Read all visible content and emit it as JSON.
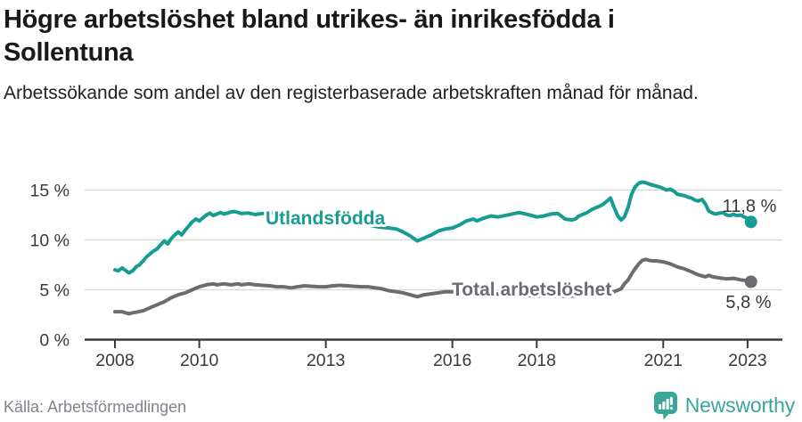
{
  "header": {
    "title_line1": "Högre arbetslöshet bland utrikes- än inrikesfödda i",
    "title_line2": "Sollentuna",
    "subtitle": "Arbetssökande som andel av den registerbaserade arbetskraften månad för månad."
  },
  "footer": {
    "source": "Källa: Arbetsförmedlingen",
    "brand": "Newsworthy",
    "brand_color": "#3aa69a"
  },
  "chart_data": {
    "type": "line",
    "title": "Högre arbetslöshet bland utrikes- än inrikesfödda i Sollentuna",
    "subtitle": "Arbetssökande som andel av den registerbaserade arbetskraften månad för månad.",
    "grid": true,
    "legend_position": "inline-labels",
    "x_axis": {
      "ticks": [
        {
          "year": 2008,
          "label": "2008"
        },
        {
          "year": 2010,
          "label": "2010"
        },
        {
          "year": 2013,
          "label": "2013"
        },
        {
          "year": 2016,
          "label": "2016"
        },
        {
          "year": 2018,
          "label": "2018"
        },
        {
          "year": 2021,
          "label": "2021"
        },
        {
          "year": 2023,
          "label": "2023"
        }
      ],
      "range": [
        2008,
        2023.2
      ]
    },
    "y_axis": {
      "ticks": [
        {
          "value": 15,
          "label": "15 %"
        },
        {
          "value": 10,
          "label": "10 %"
        },
        {
          "value": 5,
          "label": "5 %"
        },
        {
          "value": 0,
          "label": "0 %"
        }
      ],
      "range": [
        0,
        16.5
      ]
    },
    "series": [
      {
        "name": "Utlandsfödda",
        "color": "#169c92",
        "end_label": "11,8 %",
        "end_value": 11.8,
        "points": [
          [
            2008.0,
            7.0
          ],
          [
            2008.08,
            6.9
          ],
          [
            2008.17,
            7.2
          ],
          [
            2008.25,
            6.95
          ],
          [
            2008.33,
            6.7
          ],
          [
            2008.42,
            6.9
          ],
          [
            2008.5,
            7.3
          ],
          [
            2008.58,
            7.5
          ],
          [
            2008.67,
            7.9
          ],
          [
            2008.75,
            8.3
          ],
          [
            2008.83,
            8.6
          ],
          [
            2008.92,
            8.9
          ],
          [
            2009.0,
            9.1
          ],
          [
            2009.08,
            9.5
          ],
          [
            2009.17,
            9.9
          ],
          [
            2009.25,
            9.6
          ],
          [
            2009.33,
            10.1
          ],
          [
            2009.42,
            10.5
          ],
          [
            2009.5,
            10.8
          ],
          [
            2009.58,
            10.5
          ],
          [
            2009.67,
            11.0
          ],
          [
            2009.75,
            11.4
          ],
          [
            2009.83,
            11.8
          ],
          [
            2009.92,
            12.1
          ],
          [
            2010.0,
            11.9
          ],
          [
            2010.08,
            12.2
          ],
          [
            2010.17,
            12.5
          ],
          [
            2010.25,
            12.7
          ],
          [
            2010.33,
            12.45
          ],
          [
            2010.42,
            12.6
          ],
          [
            2010.5,
            12.75
          ],
          [
            2010.58,
            12.6
          ],
          [
            2010.67,
            12.7
          ],
          [
            2010.75,
            12.8
          ],
          [
            2010.83,
            12.85
          ],
          [
            2010.92,
            12.75
          ],
          [
            2011.0,
            12.65
          ],
          [
            2011.17,
            12.7
          ],
          [
            2011.33,
            12.55
          ],
          [
            2011.5,
            12.65
          ],
          [
            2011.67,
            12.75
          ],
          [
            2011.83,
            12.7
          ],
          [
            2012.0,
            12.65
          ],
          [
            2012.25,
            12.55
          ],
          [
            2012.5,
            12.4
          ],
          [
            2012.75,
            12.3
          ],
          [
            2013.0,
            12.2
          ],
          [
            2013.25,
            12.05
          ],
          [
            2013.5,
            11.9
          ],
          [
            2013.75,
            11.7
          ],
          [
            2014.0,
            11.5
          ],
          [
            2014.25,
            11.3
          ],
          [
            2014.5,
            11.2
          ],
          [
            2014.67,
            11.1
          ],
          [
            2014.83,
            10.8
          ],
          [
            2015.0,
            10.4
          ],
          [
            2015.17,
            9.9
          ],
          [
            2015.33,
            10.2
          ],
          [
            2015.5,
            10.5
          ],
          [
            2015.67,
            10.9
          ],
          [
            2015.83,
            11.1
          ],
          [
            2016.0,
            11.2
          ],
          [
            2016.17,
            11.5
          ],
          [
            2016.33,
            11.9
          ],
          [
            2016.5,
            12.1
          ],
          [
            2016.58,
            11.9
          ],
          [
            2016.75,
            12.2
          ],
          [
            2016.92,
            12.4
          ],
          [
            2017.08,
            12.3
          ],
          [
            2017.25,
            12.45
          ],
          [
            2017.42,
            12.6
          ],
          [
            2017.58,
            12.75
          ],
          [
            2017.75,
            12.6
          ],
          [
            2017.92,
            12.4
          ],
          [
            2018.0,
            12.3
          ],
          [
            2018.17,
            12.4
          ],
          [
            2018.33,
            12.6
          ],
          [
            2018.5,
            12.65
          ],
          [
            2018.58,
            12.4
          ],
          [
            2018.67,
            12.1
          ],
          [
            2018.83,
            12.0
          ],
          [
            2018.92,
            12.1
          ],
          [
            2019.0,
            12.4
          ],
          [
            2019.17,
            12.7
          ],
          [
            2019.33,
            13.1
          ],
          [
            2019.5,
            13.4
          ],
          [
            2019.58,
            13.6
          ],
          [
            2019.67,
            13.9
          ],
          [
            2019.75,
            14.2
          ],
          [
            2019.83,
            13.3
          ],
          [
            2019.92,
            12.4
          ],
          [
            2020.0,
            12.0
          ],
          [
            2020.08,
            12.3
          ],
          [
            2020.17,
            13.3
          ],
          [
            2020.25,
            14.6
          ],
          [
            2020.33,
            15.3
          ],
          [
            2020.42,
            15.7
          ],
          [
            2020.5,
            15.8
          ],
          [
            2020.58,
            15.75
          ],
          [
            2020.67,
            15.6
          ],
          [
            2020.75,
            15.5
          ],
          [
            2020.83,
            15.4
          ],
          [
            2020.92,
            15.3
          ],
          [
            2021.0,
            15.15
          ],
          [
            2021.08,
            15.0
          ],
          [
            2021.17,
            15.1
          ],
          [
            2021.25,
            14.9
          ],
          [
            2021.33,
            14.6
          ],
          [
            2021.42,
            14.5
          ],
          [
            2021.5,
            14.45
          ],
          [
            2021.58,
            14.3
          ],
          [
            2021.67,
            14.2
          ],
          [
            2021.75,
            14.0
          ],
          [
            2021.83,
            13.9
          ],
          [
            2021.92,
            14.05
          ],
          [
            2022.0,
            13.6
          ],
          [
            2022.08,
            12.9
          ],
          [
            2022.17,
            12.7
          ],
          [
            2022.25,
            12.6
          ],
          [
            2022.33,
            12.7
          ],
          [
            2022.42,
            12.75
          ],
          [
            2022.5,
            12.5
          ],
          [
            2022.58,
            12.45
          ],
          [
            2022.67,
            12.55
          ],
          [
            2022.75,
            12.45
          ],
          [
            2022.83,
            12.5
          ],
          [
            2022.92,
            12.3
          ],
          [
            2023.0,
            12.15
          ],
          [
            2023.08,
            11.8
          ]
        ]
      },
      {
        "name": "Total arbetslöshet",
        "color": "#6e6a72",
        "end_label": "5,8 %",
        "end_value": 5.8,
        "points": [
          [
            2008.0,
            2.8
          ],
          [
            2008.17,
            2.8
          ],
          [
            2008.25,
            2.7
          ],
          [
            2008.33,
            2.6
          ],
          [
            2008.42,
            2.7
          ],
          [
            2008.5,
            2.75
          ],
          [
            2008.67,
            2.9
          ],
          [
            2008.83,
            3.2
          ],
          [
            2009.0,
            3.5
          ],
          [
            2009.17,
            3.8
          ],
          [
            2009.33,
            4.2
          ],
          [
            2009.5,
            4.5
          ],
          [
            2009.67,
            4.7
          ],
          [
            2009.83,
            5.0
          ],
          [
            2010.0,
            5.3
          ],
          [
            2010.17,
            5.5
          ],
          [
            2010.33,
            5.6
          ],
          [
            2010.42,
            5.5
          ],
          [
            2010.58,
            5.6
          ],
          [
            2010.75,
            5.5
          ],
          [
            2010.92,
            5.6
          ],
          [
            2011.0,
            5.5
          ],
          [
            2011.17,
            5.6
          ],
          [
            2011.33,
            5.5
          ],
          [
            2011.5,
            5.45
          ],
          [
            2011.67,
            5.4
          ],
          [
            2011.83,
            5.3
          ],
          [
            2012.0,
            5.3
          ],
          [
            2012.17,
            5.2
          ],
          [
            2012.33,
            5.3
          ],
          [
            2012.5,
            5.4
          ],
          [
            2012.67,
            5.35
          ],
          [
            2012.83,
            5.3
          ],
          [
            2013.0,
            5.3
          ],
          [
            2013.17,
            5.4
          ],
          [
            2013.33,
            5.45
          ],
          [
            2013.5,
            5.4
          ],
          [
            2013.67,
            5.35
          ],
          [
            2013.83,
            5.3
          ],
          [
            2014.0,
            5.3
          ],
          [
            2014.17,
            5.2
          ],
          [
            2014.33,
            5.1
          ],
          [
            2014.5,
            4.9
          ],
          [
            2014.67,
            4.8
          ],
          [
            2014.83,
            4.7
          ],
          [
            2015.0,
            4.5
          ],
          [
            2015.17,
            4.3
          ],
          [
            2015.33,
            4.5
          ],
          [
            2015.5,
            4.6
          ],
          [
            2015.67,
            4.7
          ],
          [
            2015.83,
            4.8
          ],
          [
            2016.0,
            4.8
          ],
          [
            2016.33,
            4.75
          ],
          [
            2016.67,
            4.7
          ],
          [
            2017.0,
            4.6
          ],
          [
            2017.33,
            4.5
          ],
          [
            2017.67,
            4.45
          ],
          [
            2018.0,
            4.4
          ],
          [
            2018.33,
            4.4
          ],
          [
            2018.67,
            4.35
          ],
          [
            2019.0,
            4.4
          ],
          [
            2019.33,
            4.5
          ],
          [
            2019.67,
            4.6
          ],
          [
            2019.83,
            4.8
          ],
          [
            2020.0,
            5.1
          ],
          [
            2020.08,
            5.6
          ],
          [
            2020.17,
            6.0
          ],
          [
            2020.25,
            6.6
          ],
          [
            2020.33,
            7.1
          ],
          [
            2020.42,
            7.6
          ],
          [
            2020.5,
            7.95
          ],
          [
            2020.58,
            8.05
          ],
          [
            2020.67,
            7.95
          ],
          [
            2020.75,
            7.9
          ],
          [
            2020.83,
            7.9
          ],
          [
            2020.92,
            7.85
          ],
          [
            2021.0,
            7.8
          ],
          [
            2021.17,
            7.6
          ],
          [
            2021.33,
            7.3
          ],
          [
            2021.5,
            7.1
          ],
          [
            2021.67,
            6.8
          ],
          [
            2021.83,
            6.5
          ],
          [
            2022.0,
            6.3
          ],
          [
            2022.08,
            6.45
          ],
          [
            2022.17,
            6.3
          ],
          [
            2022.33,
            6.2
          ],
          [
            2022.5,
            6.1
          ],
          [
            2022.67,
            6.15
          ],
          [
            2022.83,
            6.0
          ],
          [
            2022.92,
            5.95
          ],
          [
            2023.0,
            5.9
          ],
          [
            2023.08,
            5.8
          ]
        ]
      }
    ]
  }
}
